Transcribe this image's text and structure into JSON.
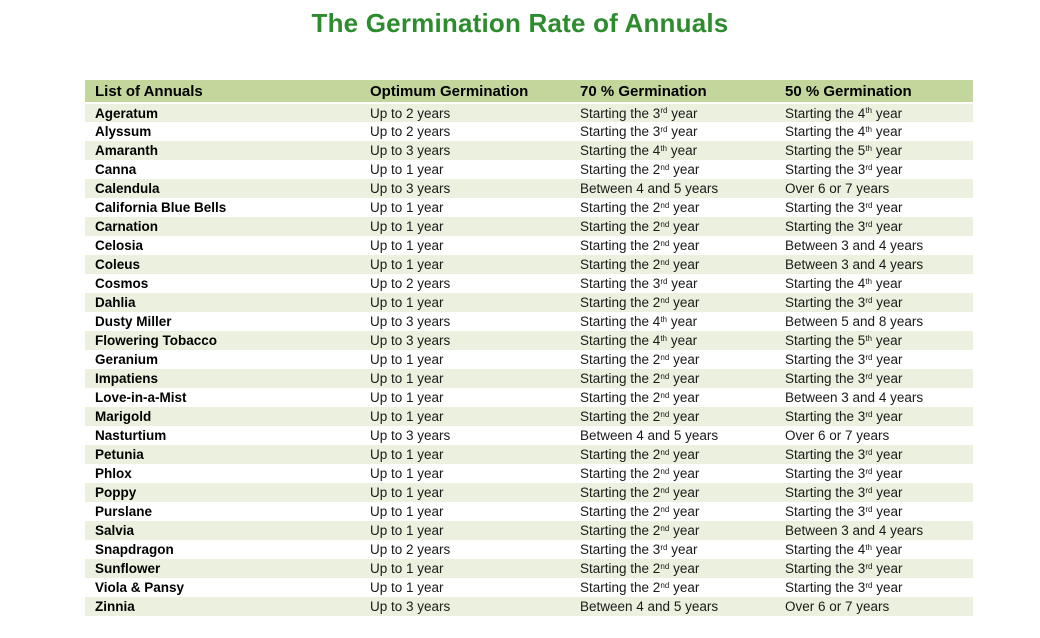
{
  "title": {
    "text": "The Germination Rate of Annuals",
    "color": "#2d8c2d"
  },
  "table": {
    "header_bg": "#c3d69b",
    "band_bg": "#ebf1de",
    "columns": [
      "List of Annuals",
      "Optimum Germination",
      "70 % Germination",
      "50 % Germination"
    ],
    "rows": [
      [
        "Ageratum",
        "Up to 2 years",
        "Starting the 3^rd year",
        "Starting the 4^th year"
      ],
      [
        "Alyssum",
        "Up to 2 years",
        "Starting the 3^rd year",
        "Starting the 4^th year"
      ],
      [
        "Amaranth",
        "Up to 3 years",
        "Starting the 4^th year",
        "Starting the 5^th year"
      ],
      [
        "Canna",
        "Up to 1 year",
        "Starting the 2^nd year",
        "Starting the 3^rd year"
      ],
      [
        "Calendula",
        "Up to 3 years",
        "Between 4 and 5 years",
        "Over 6 or 7 years"
      ],
      [
        "California Blue Bells",
        "Up to 1 year",
        "Starting the 2^nd year",
        "Starting the 3^rd year"
      ],
      [
        "Carnation",
        "Up to 1 year",
        "Starting the 2^nd year",
        "Starting the 3^rd year"
      ],
      [
        "Celosia",
        "Up to 1 year",
        "Starting the 2^nd year",
        "Between 3 and 4 years"
      ],
      [
        "Coleus",
        "Up to 1 year",
        "Starting the 2^nd year",
        "Between 3 and 4 years"
      ],
      [
        "Cosmos",
        "Up to 2 years",
        "Starting the 3^rd year",
        "Starting the 4^th year"
      ],
      [
        "Dahlia",
        "Up to 1 year",
        "Starting the 2^nd year",
        "Starting the 3^rd year"
      ],
      [
        "Dusty Miller",
        "Up to 3 years",
        "Starting the 4^th year",
        "Between 5 and 8 years"
      ],
      [
        "Flowering Tobacco",
        "Up to 3 years",
        "Starting the 4^th year",
        "Starting the 5^th year"
      ],
      [
        "Geranium",
        "Up to 1 year",
        "Starting the 2^nd year",
        "Starting the 3^rd year"
      ],
      [
        "Impatiens",
        "Up to 1 year",
        "Starting the 2^nd year",
        "Starting the 3^rd year"
      ],
      [
        "Love-in-a-Mist",
        "Up to 1 year",
        "Starting the 2^nd year",
        "Between 3 and 4 years"
      ],
      [
        "Marigold",
        "Up to 1 year",
        "Starting the 2^nd year",
        "Starting the 3^rd year"
      ],
      [
        "Nasturtium",
        "Up to 3 years",
        "Between 4 and 5 years",
        "Over 6 or 7 years"
      ],
      [
        "Petunia",
        "Up to 1 year",
        "Starting the 2^nd year",
        "Starting the 3^rd year"
      ],
      [
        "Phlox",
        "Up to 1 year",
        "Starting the 2^nd year",
        "Starting the 3^rd year"
      ],
      [
        "Poppy",
        "Up to 1 year",
        "Starting the 2^nd year",
        "Starting the 3^rd year"
      ],
      [
        "Purslane",
        "Up to 1 year",
        "Starting the 2^nd year",
        "Starting the 3^rd year"
      ],
      [
        "Salvia",
        "Up to 1 year",
        "Starting the 2^nd year",
        "Between 3 and 4 years"
      ],
      [
        "Snapdragon",
        "Up to 2 years",
        "Starting the 3^rd year",
        "Starting the 4^th year"
      ],
      [
        "Sunflower",
        "Up to 1 year",
        "Starting the 2^nd year",
        "Starting the 3^rd year"
      ],
      [
        "Viola & Pansy",
        "Up to 1 year",
        "Starting the 2^nd year",
        "Starting the 3^rd year"
      ],
      [
        "Zinnia",
        "Up to 3 years",
        "Between 4 and 5 years",
        "Over 6 or 7 years"
      ]
    ]
  }
}
